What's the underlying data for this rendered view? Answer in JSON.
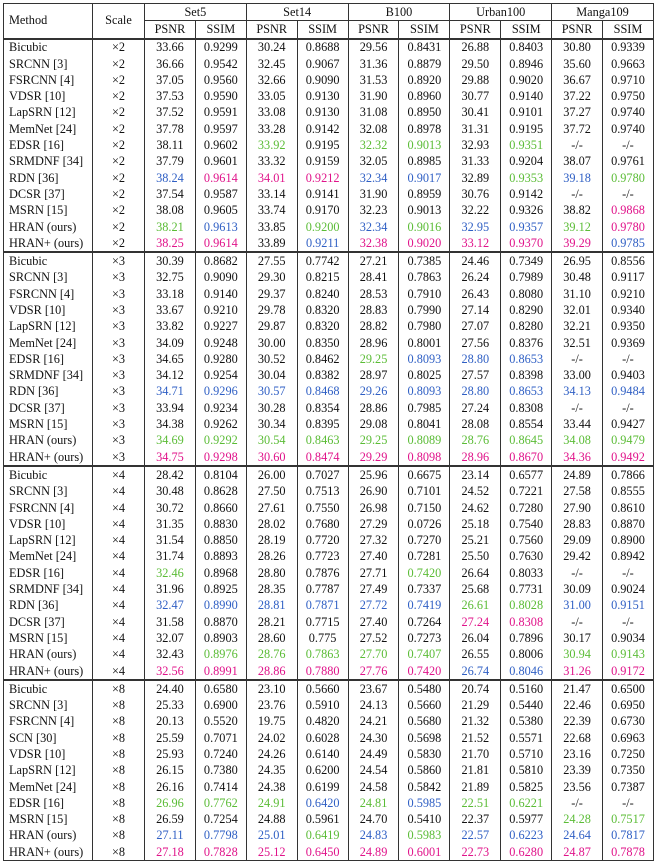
{
  "colors": {
    "green": "#5bbc36",
    "blue": "#2f5fc4",
    "red": "#e0138a",
    "black": "#111111"
  },
  "headers": {
    "method": "Method",
    "scale": "Scale",
    "datasets": [
      "Set5",
      "Set14",
      "B100",
      "Urban100",
      "Manga109"
    ],
    "psnr": "PSNR",
    "ssim": "SSIM"
  },
  "groups": [
    {
      "scale": "×2",
      "rows": [
        {
          "m": "Bicubic",
          "v": [
            "33.66",
            "0.9299",
            "30.24",
            "0.8688",
            "29.56",
            "0.8431",
            "26.88",
            "0.8403",
            "30.80",
            "0.9339"
          ],
          "c": "kkkkkkkkkk"
        },
        {
          "m": "SRCNN [3]",
          "v": [
            "36.66",
            "0.9542",
            "32.45",
            "0.9067",
            "31.36",
            "0.8879",
            "29.50",
            "0.8946",
            "35.60",
            "0.9663"
          ],
          "c": "kkkkkkkkkk"
        },
        {
          "m": "FSRCNN [4]",
          "v": [
            "37.05",
            "0.9560",
            "32.66",
            "0.9090",
            "31.53",
            "0.8920",
            "29.88",
            "0.9020",
            "36.67",
            "0.9710"
          ],
          "c": "kkkkkkkkkk"
        },
        {
          "m": "VDSR [10]",
          "v": [
            "37.53",
            "0.9590",
            "33.05",
            "0.9130",
            "31.90",
            "0.8960",
            "30.77",
            "0.9140",
            "37.22",
            "0.9750"
          ],
          "c": "kkkkkkkkkk"
        },
        {
          "m": "LapSRN [12]",
          "v": [
            "37.52",
            "0.9591",
            "33.08",
            "0.9130",
            "31.08",
            "0.8950",
            "30.41",
            "0.9101",
            "37.27",
            "0.9740"
          ],
          "c": "kkkkkkkkkk"
        },
        {
          "m": "MemNet [24]",
          "v": [
            "37.78",
            "0.9597",
            "33.28",
            "0.9142",
            "32.08",
            "0.8978",
            "31.31",
            "0.9195",
            "37.72",
            "0.9740"
          ],
          "c": "kkkkkkkkkk"
        },
        {
          "m": "EDSR [16]",
          "v": [
            "38.11",
            "0.9602",
            "33.92",
            "0.9195",
            "32.32",
            "0.9013",
            "32.93",
            "0.9351",
            "-/-",
            "-/-"
          ],
          "c": "kkgkggkgkk"
        },
        {
          "m": "SRMDNF [34]",
          "v": [
            "37.79",
            "0.9601",
            "33.32",
            "0.9159",
            "32.05",
            "0.8985",
            "31.33",
            "0.9204",
            "38.07",
            "0.9761"
          ],
          "c": "kkkkkkkkkk"
        },
        {
          "m": "RDN [36]",
          "v": [
            "38.24",
            "0.9614",
            "34.01",
            "0.9212",
            "32.34",
            "0.9017",
            "32.89",
            "0.9353",
            "39.18",
            "0.9780"
          ],
          "c": "brrrbbkgbg"
        },
        {
          "m": "DCSR [37]",
          "v": [
            "37.54",
            "0.9587",
            "33.14",
            "0.9141",
            "31.90",
            "0.8959",
            "30.76",
            "0.9142",
            "-/-",
            "-/-"
          ],
          "c": "kkkkkkkkkk"
        },
        {
          "m": "MSRN [15]",
          "v": [
            "38.08",
            "0.9605",
            "33.74",
            "0.9170",
            "32.23",
            "0.9013",
            "32.22",
            "0.9326",
            "38.82",
            "0.9868"
          ],
          "c": "kkkkkkkkkr"
        },
        {
          "m": "HRAN (ours)",
          "v": [
            "38.21",
            "0.9613",
            "33.85",
            "0.9200",
            "32.34",
            "0.9016",
            "32.95",
            "0.9357",
            "39.12",
            "0.9780"
          ],
          "c": "gbkgbgbbgr"
        },
        {
          "m": "HRAN+ (ours)",
          "v": [
            "38.25",
            "0.9614",
            "33.89",
            "0.9211",
            "32.38",
            "0.9020",
            "33.12",
            "0.9370",
            "39.29",
            "0.9785"
          ],
          "c": "rrkbrrrrrb"
        }
      ]
    },
    {
      "scale": "×3",
      "rows": [
        {
          "m": "Bicubic",
          "v": [
            "30.39",
            "0.8682",
            "27.55",
            "0.7742",
            "27.21",
            "0.7385",
            "24.46",
            "0.7349",
            "26.95",
            "0.8556"
          ],
          "c": "kkkkkkkkkk"
        },
        {
          "m": "SRCNN [3]",
          "v": [
            "32.75",
            "0.9090",
            "29.30",
            "0.8215",
            "28.41",
            "0.7863",
            "26.24",
            "0.7989",
            "30.48",
            "0.9117"
          ],
          "c": "kkkkkkkkkk"
        },
        {
          "m": "FSRCNN [4]",
          "v": [
            "33.18",
            "0.9140",
            "29.37",
            "0.8240",
            "28.53",
            "0.7910",
            "26.43",
            "0.8080",
            "31.10",
            "0.9210"
          ],
          "c": "kkkkkkkkkk"
        },
        {
          "m": "VDSR [10]",
          "v": [
            "33.67",
            "0.9210",
            "29.78",
            "0.8320",
            "28.83",
            "0.7990",
            "27.14",
            "0.8290",
            "32.01",
            "0.9340"
          ],
          "c": "kkkkkkkkkk"
        },
        {
          "m": "LapSRN [12]",
          "v": [
            "33.82",
            "0.9227",
            "29.87",
            "0.8320",
            "28.82",
            "0.7980",
            "27.07",
            "0.8280",
            "32.21",
            "0.9350"
          ],
          "c": "kkkkkkkkkk"
        },
        {
          "m": "MemNet [24]",
          "v": [
            "34.09",
            "0.9248",
            "30.00",
            "0.8350",
            "28.96",
            "0.8001",
            "27.56",
            "0.8376",
            "32.51",
            "0.9369"
          ],
          "c": "kkkkkkkkkk"
        },
        {
          "m": "EDSR [16]",
          "v": [
            "34.65",
            "0.9280",
            "30.52",
            "0.8462",
            "29.25",
            "0.8093",
            "28.80",
            "0.8653",
            "-/-",
            "-/-"
          ],
          "c": "kkkkgbbbkk"
        },
        {
          "m": "SRMDNF [34]",
          "v": [
            "34.12",
            "0.9254",
            "30.04",
            "0.8382",
            "28.97",
            "0.8025",
            "27.57",
            "0.8398",
            "33.00",
            "0.9403"
          ],
          "c": "kkkkkkkkkk"
        },
        {
          "m": "RDN [36]",
          "v": [
            "34.71",
            "0.9296",
            "30.57",
            "0.8468",
            "29.26",
            "0.8093",
            "28.80",
            "0.8653",
            "34.13",
            "0.9484"
          ],
          "c": "bbbbbbbbbb"
        },
        {
          "m": "DCSR [37]",
          "v": [
            "33.94",
            "0.9234",
            "30.28",
            "0.8354",
            "28.86",
            "0.7985",
            "27.24",
            "0.8308",
            "-/-",
            "-/-"
          ],
          "c": "kkkkkkkkkk"
        },
        {
          "m": "MSRN [15]",
          "v": [
            "34.38",
            "0.9262",
            "30.34",
            "0.8395",
            "29.08",
            "0.8041",
            "28.08",
            "0.8554",
            "33.44",
            "0.9427"
          ],
          "c": "kkkkkkkkkk"
        },
        {
          "m": "HRAN (ours)",
          "v": [
            "34.69",
            "0.9292",
            "30.54",
            "0.8463",
            "29.25",
            "0.8089",
            "28.76",
            "0.8645",
            "34.08",
            "0.9479"
          ],
          "c": "gggggggggg"
        },
        {
          "m": "HRAN+ (ours)",
          "v": [
            "34.75",
            "0.9298",
            "30.60",
            "0.8474",
            "29.29",
            "0.8098",
            "28.96",
            "0.8670",
            "34.36",
            "0.9492"
          ],
          "c": "rrrrrrrrrr"
        }
      ]
    },
    {
      "scale": "×4",
      "rows": [
        {
          "m": "Bicubic",
          "v": [
            "28.42",
            "0.8104",
            "26.00",
            "0.7027",
            "25.96",
            "0.6675",
            "23.14",
            "0.6577",
            "24.89",
            "0.7866"
          ],
          "c": "kkkkkkkkkk"
        },
        {
          "m": "SRCNN [3]",
          "v": [
            "30.48",
            "0.8628",
            "27.50",
            "0.7513",
            "26.90",
            "0.7101",
            "24.52",
            "0.7221",
            "27.58",
            "0.8555"
          ],
          "c": "kkkkkkkkkk"
        },
        {
          "m": "FSRCNN [4]",
          "v": [
            "30.72",
            "0.8660",
            "27.61",
            "0.7550",
            "26.98",
            "0.7150",
            "24.62",
            "0.7280",
            "27.90",
            "0.8610"
          ],
          "c": "kkkkkkkkkk"
        },
        {
          "m": "VDSR [10]",
          "v": [
            "31.35",
            "0.8830",
            "28.02",
            "0.7680",
            "27.29",
            "0.0726",
            "25.18",
            "0.7540",
            "28.83",
            "0.8870"
          ],
          "c": "kkkkkkkkkk"
        },
        {
          "m": "LapSRN [12]",
          "v": [
            "31.54",
            "0.8850",
            "28.19",
            "0.7720",
            "27.32",
            "0.7270",
            "25.21",
            "0.7560",
            "29.09",
            "0.8900"
          ],
          "c": "kkkkkkkkkk"
        },
        {
          "m": "MemNet [24]",
          "v": [
            "31.74",
            "0.8893",
            "28.26",
            "0.7723",
            "27.40",
            "0.7281",
            "25.50",
            "0.7630",
            "29.42",
            "0.8942"
          ],
          "c": "kkkkkkkkkk"
        },
        {
          "m": "EDSR [16]",
          "v": [
            "32.46",
            "0.8968",
            "28.80",
            "0.7876",
            "27.71",
            "0.7420",
            "26.64",
            "0.8033",
            "-/-",
            "-/-"
          ],
          "c": "gkkkkgkkkk"
        },
        {
          "m": "SRMDNF [34]",
          "v": [
            "31.96",
            "0.8925",
            "28.35",
            "0.7787",
            "27.49",
            "0.7337",
            "25.68",
            "0.7731",
            "30.09",
            "0.9024"
          ],
          "c": "kkkkkkkkkk"
        },
        {
          "m": "RDN [36]",
          "v": [
            "32.47",
            "0.8990",
            "28.81",
            "0.7871",
            "27.72",
            "0.7419",
            "26.61",
            "0.8028",
            "31.00",
            "0.9151"
          ],
          "c": "bbbbbbggbb"
        },
        {
          "m": "DCSR [37]",
          "v": [
            "31.58",
            "0.8870",
            "28.21",
            "0.7715",
            "27.40",
            "0.7264",
            "27.24",
            "0.8308",
            "-/-",
            "-/-"
          ],
          "c": "kkkkkkrrkk"
        },
        {
          "m": "MSRN [15]",
          "v": [
            "32.07",
            "0.8903",
            "28.60",
            "0.775",
            "27.52",
            "0.7273",
            "26.04",
            "0.7896",
            "30.17",
            "0.9034"
          ],
          "c": "kkkkkkkkkk"
        },
        {
          "m": "HRAN (ours)",
          "v": [
            "32.43",
            "0.8976",
            "28.76",
            "0.7863",
            "27.70",
            "0.7407",
            "26.55",
            "0.8006",
            "30.94",
            "0.9143"
          ],
          "c": "kgggggkkgg"
        },
        {
          "m": "HRAN+ (ours)",
          "v": [
            "32.56",
            "0.8991",
            "28.86",
            "0.7880",
            "27.76",
            "0.7420",
            "26.74",
            "0.8046",
            "31.26",
            "0.9172"
          ],
          "c": "rrrrrrbbrr"
        }
      ]
    },
    {
      "scale": "×8",
      "rows": [
        {
          "m": "Bicubic",
          "v": [
            "24.40",
            "0.6580",
            "23.10",
            "0.5660",
            "23.67",
            "0.5480",
            "20.74",
            "0.5160",
            "21.47",
            "0.6500"
          ],
          "c": "kkkkkkkkkk"
        },
        {
          "m": "SRCNN [3]",
          "v": [
            "25.33",
            "0.6900",
            "23.76",
            "0.5910",
            "24.13",
            "0.5660",
            "21.29",
            "0.5440",
            "22.46",
            "0.6950"
          ],
          "c": "kkkkkkkkkk"
        },
        {
          "m": "FSRCNN [4]",
          "v": [
            "20.13",
            "0.5520",
            "19.75",
            "0.4820",
            "24.21",
            "0.5680",
            "21.32",
            "0.5380",
            "22.39",
            "0.6730"
          ],
          "c": "kkkkkkkkkk"
        },
        {
          "m": "SCN [30]",
          "v": [
            "25.59",
            "0.7071",
            "24.02",
            "0.6028",
            "24.30",
            "0.5698",
            "21.52",
            "0.5571",
            "22.68",
            "0.6963"
          ],
          "c": "kkkkkkkkkk"
        },
        {
          "m": "VDSR [10]",
          "v": [
            "25.93",
            "0.7240",
            "24.26",
            "0.6140",
            "24.49",
            "0.5830",
            "21.70",
            "0.5710",
            "23.16",
            "0.7250"
          ],
          "c": "kkkkkkkkkk"
        },
        {
          "m": "LapSRN [12]",
          "v": [
            "26.15",
            "0.7380",
            "24.35",
            "0.6200",
            "24.54",
            "0.5860",
            "21.81",
            "0.5810",
            "23.39",
            "0.7350"
          ],
          "c": "kkkkkkkkkk"
        },
        {
          "m": "MemNet [24]",
          "v": [
            "26.16",
            "0.7414",
            "24.38",
            "0.6199",
            "24.58",
            "0.5842",
            "21.89",
            "0.5825",
            "23.56",
            "0.7387"
          ],
          "c": "kkkkkkkkkk"
        },
        {
          "m": "EDSR [16]",
          "v": [
            "26.96",
            "0.7762",
            "24.91",
            "0.6420",
            "24.81",
            "0.5985",
            "22.51",
            "0.6221",
            "-/-",
            "-/-"
          ],
          "c": "gggbgbggkk"
        },
        {
          "m": "MSRN [15]",
          "v": [
            "26.59",
            "0.7254",
            "24.88",
            "0.5961",
            "24.70",
            "0.5410",
            "22.37",
            "0.5977",
            "24.28",
            "0.7517"
          ],
          "c": "kkkkkkkkgg"
        },
        {
          "m": "HRAN (ours)",
          "v": [
            "27.11",
            "0.7798",
            "25.01",
            "0.6419",
            "24.83",
            "0.5983",
            "22.57",
            "0.6223",
            "24.64",
            "0.7817"
          ],
          "c": "bbbgbgbbbb"
        },
        {
          "m": "HRAN+ (ours)",
          "v": [
            "27.18",
            "0.7828",
            "25.12",
            "0.6450",
            "24.89",
            "0.6001",
            "22.73",
            "0.6280",
            "24.87",
            "0.7878"
          ],
          "c": "rrrrrrrrrr"
        }
      ]
    }
  ]
}
